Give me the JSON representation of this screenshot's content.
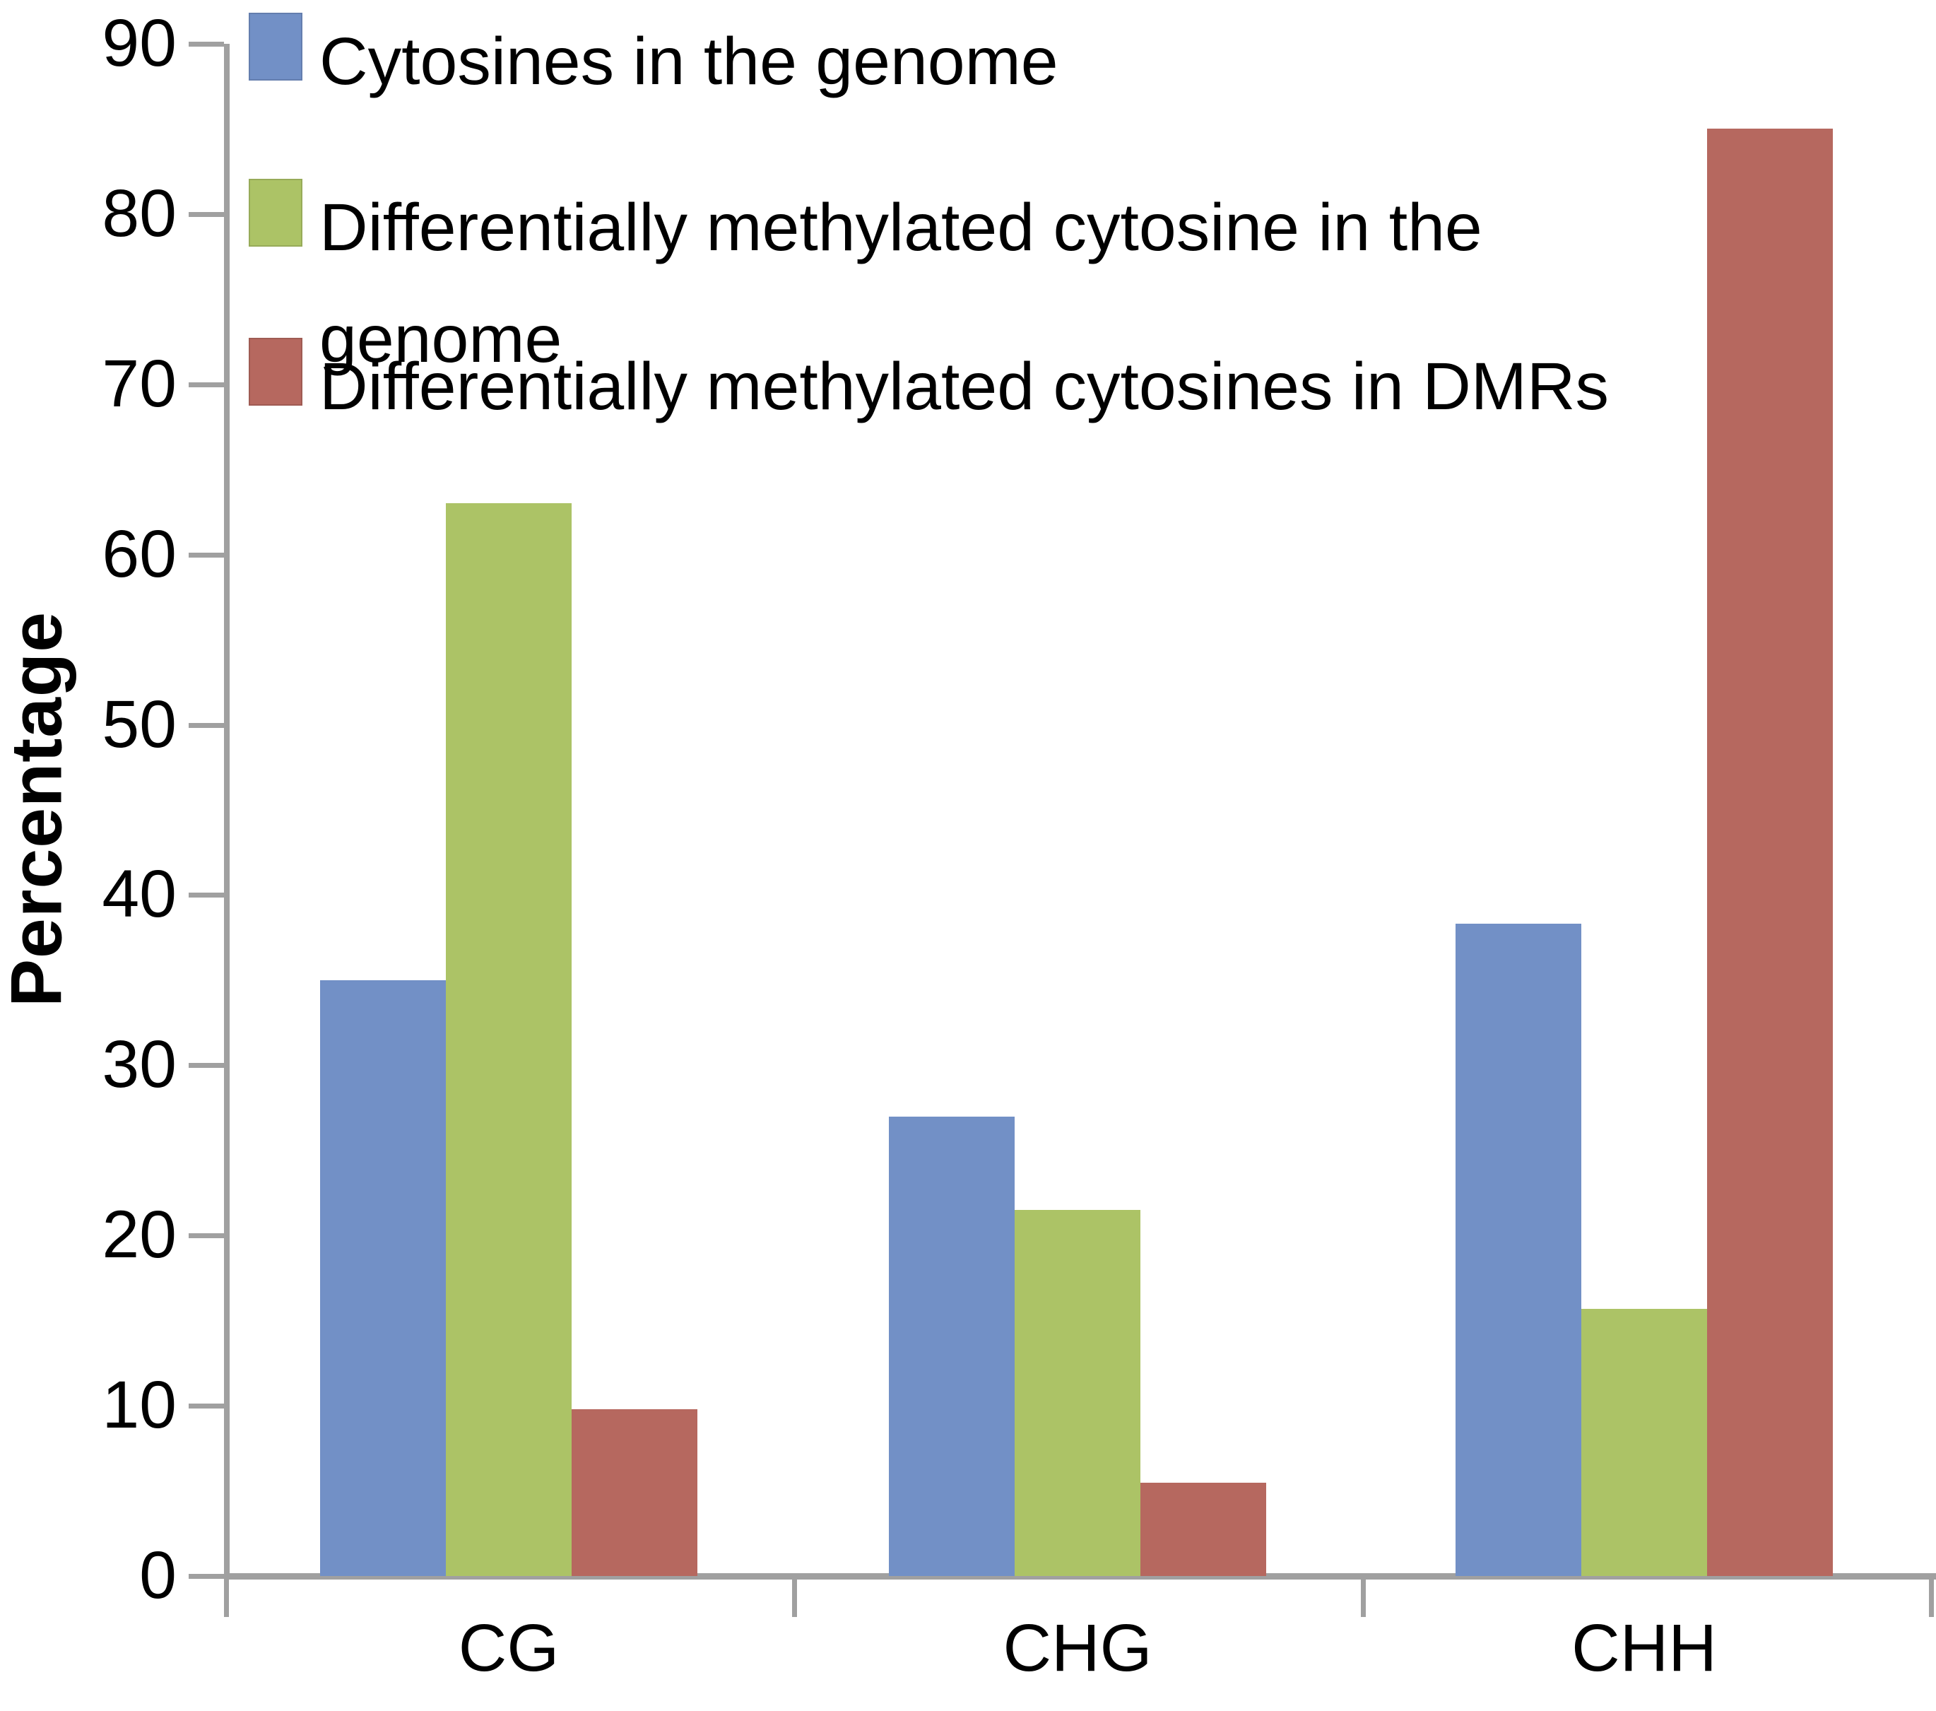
{
  "chart_data": {
    "type": "bar",
    "title": "",
    "categories": [
      "CG",
      "CHG",
      "CHH"
    ],
    "series": [
      {
        "name": "Cytosines in the genome",
        "color": "#7290C6",
        "values": [
          35,
          27,
          38.3
        ]
      },
      {
        "name": "Differentially methylated cytosine in the genome",
        "color": "#ACC366",
        "values": [
          63,
          21.5,
          15.7
        ]
      },
      {
        "name": "Differentially methylated cytosines in DMRs",
        "color": "#B6685F",
        "values": [
          9.8,
          5.5,
          85
        ]
      }
    ],
    "xlabel": "",
    "ylabel": "Percentage",
    "ylim": [
      0,
      90
    ],
    "ytick_step": 10,
    "ytick_labels": [
      "0",
      "10",
      "20",
      "30",
      "40",
      "50",
      "60",
      "70",
      "80",
      "90"
    ],
    "legend_position": "top-left",
    "grid": false,
    "axis_color": "#A0A0A0",
    "text_color": "#000000",
    "background": "#FFFFFF"
  }
}
